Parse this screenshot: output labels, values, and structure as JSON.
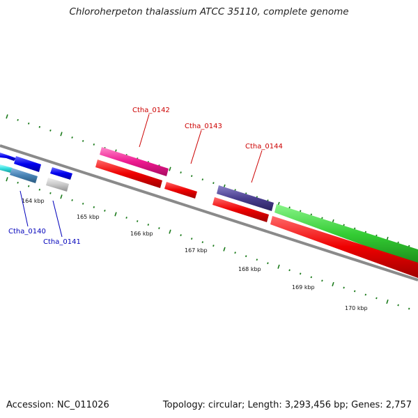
{
  "title": "Chloroherpeton thalassium ATCC 35110, complete genome",
  "footer": {
    "accession": "Accession: NC_011026",
    "summary": "Topology: circular; Length: 3,293,456 bp; Genes: 2,757"
  },
  "colors": {
    "backbone": "#8a8a8a",
    "tick": "#1a7a1a",
    "forward_label": "#cc0000",
    "reverse_label": "#0000bb"
  },
  "kbp_labels": [
    "164 kbp",
    "165 kbp",
    "166 kbp",
    "167 kbp",
    "168 kbp",
    "169 kbp",
    "170 kbp"
  ],
  "genes": [
    {
      "label": "Ctha_0142",
      "strand": "forward"
    },
    {
      "label": "Ctha_0143",
      "strand": "forward"
    },
    {
      "label": "Ctha_0144",
      "strand": "forward"
    },
    {
      "label": "Ctha_0140",
      "strand": "reverse"
    },
    {
      "label": "Ctha_0141",
      "strand": "reverse"
    }
  ]
}
